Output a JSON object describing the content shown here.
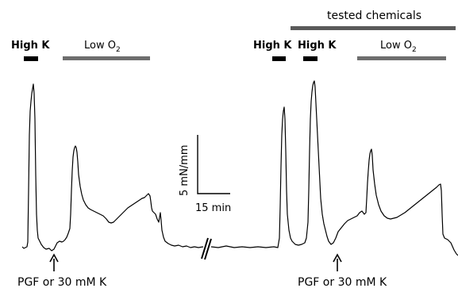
{
  "labels": {
    "tested_chemicals": "tested chemicals",
    "high_k_1": "High K",
    "low_o2_1": "Low O",
    "low_o2_1_sub": "2",
    "high_k_2": "High K",
    "high_k_3": "High K",
    "low_o2_2": "Low O",
    "low_o2_2_sub": "2",
    "scale_y": "5 mN/mm",
    "scale_x": "15 min",
    "pgf_1": "PGF or 30 mM K",
    "pgf_2": "PGF or 30 mM K"
  },
  "colors": {
    "trace": "#000000",
    "bar_black": "#000000",
    "bar_gray": "#6e6e6e",
    "chem_bar": "#5a5a5a"
  },
  "icons": {
    "arrow": "up-arrow-icon",
    "break": "axis-break-icon"
  }
}
